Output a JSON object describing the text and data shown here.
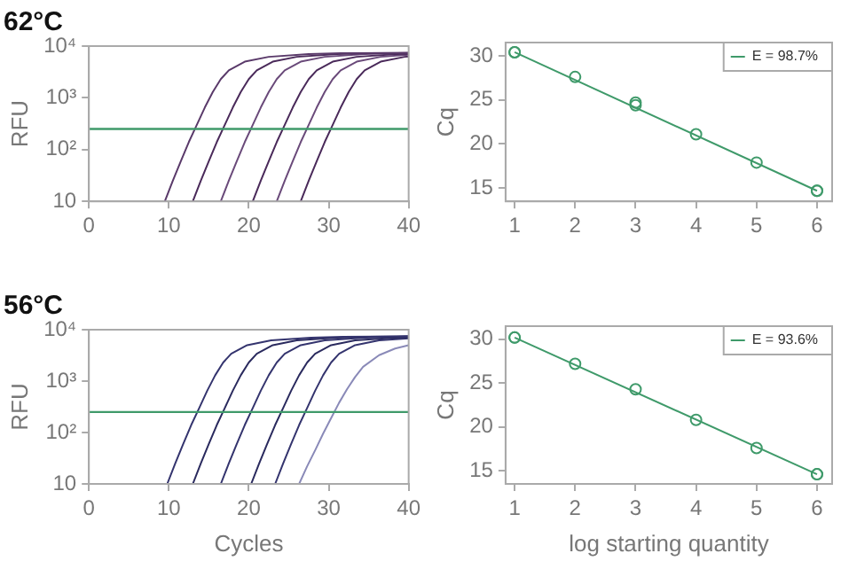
{
  "chart_data": [
    {
      "type": "line",
      "title": "62°C",
      "ylabel": "RFU",
      "log": "y",
      "grid": false,
      "marker": "none",
      "legend": false,
      "xlim": [
        0,
        40
      ],
      "xticks": [
        0,
        10,
        20,
        30,
        40
      ],
      "ylim": [
        10,
        10000
      ],
      "yticks": [
        10,
        {
          "value": 100,
          "label": "10²"
        },
        {
          "value": 1000,
          "label": "10³"
        },
        {
          "value": 10000,
          "label": "10⁴"
        }
      ],
      "ref_lines": [
        {
          "axis": "y",
          "value": 250,
          "color": "#3f9a6a"
        }
      ],
      "series": [
        {
          "color": "#5a3a6a",
          "x": [
            9.5,
            10.5,
            11.5,
            12.5,
            13.5,
            14.5,
            15.5,
            16.5,
            17.5,
            19.5,
            22.5,
            27.5,
            31.5,
            40
          ],
          "values": [
            10,
            25,
            60,
            140,
            300,
            650,
            1300,
            2300,
            3400,
            5000,
            6200,
            7000,
            7300,
            7400
          ]
        },
        {
          "color": "#4a2a5a",
          "x": [
            13,
            14,
            15,
            16,
            17,
            18,
            19,
            20,
            21,
            23,
            26,
            31,
            35,
            40
          ],
          "values": [
            10,
            25,
            60,
            140,
            300,
            650,
            1300,
            2300,
            3400,
            5000,
            6200,
            7000,
            7300,
            7400
          ]
        },
        {
          "color": "#6a4a7a",
          "x": [
            16.5,
            17.5,
            18.5,
            19.5,
            20.5,
            21.5,
            22.5,
            23.5,
            24.5,
            26.5,
            29.5,
            34.5,
            38.5,
            40
          ],
          "values": [
            10,
            25,
            60,
            140,
            300,
            650,
            1300,
            2300,
            3400,
            5000,
            6200,
            7000,
            7300,
            7400
          ]
        },
        {
          "color": "#4a2a5a",
          "x": [
            20.5,
            21.5,
            22.5,
            23.5,
            24.5,
            25.5,
            26.5,
            27.5,
            28.5,
            30.5,
            33.5,
            38.5,
            40
          ],
          "values": [
            10,
            25,
            60,
            140,
            300,
            650,
            1300,
            2300,
            3400,
            5000,
            6200,
            7000,
            7100
          ]
        },
        {
          "color": "#6a4a7a",
          "x": [
            23.5,
            24.5,
            25.5,
            26.5,
            27.5,
            28.5,
            29.5,
            30.5,
            31.5,
            33.5,
            36.5,
            40
          ],
          "values": [
            10,
            25,
            60,
            140,
            300,
            650,
            1300,
            2300,
            3400,
            5000,
            6200,
            6800
          ]
        },
        {
          "color": "#4a2a5a",
          "x": [
            26.5,
            27.5,
            28.5,
            29.5,
            30.5,
            31.5,
            32.5,
            33.5,
            34.5,
            36.5,
            39.5,
            40
          ],
          "values": [
            10,
            25,
            60,
            140,
            300,
            650,
            1300,
            2300,
            3400,
            5000,
            6200,
            6300
          ]
        }
      ]
    },
    {
      "type": "scatter",
      "ylabel": "Cq",
      "grid": false,
      "marker": "circle",
      "legend": "top right",
      "xlim": [
        0.85,
        6.25
      ],
      "xticks": [
        1,
        2,
        3,
        4,
        5,
        6
      ],
      "ylim": [
        13.5,
        31.5
      ],
      "yticks": [
        15,
        20,
        25,
        30
      ],
      "series": [
        {
          "color": "#3f9a6a",
          "x": [
            1,
            2,
            3,
            3,
            4,
            5,
            6
          ],
          "values": [
            30.4,
            27.6,
            24.7,
            24.4,
            21.1,
            17.9,
            14.7
          ]
        },
        {
          "type": "line",
          "name": "E = 98.7%",
          "color": "#3f9a6a",
          "x": [
            1,
            6
          ],
          "values": [
            30.4,
            14.7
          ]
        }
      ]
    },
    {
      "type": "line",
      "title": "56°C",
      "xlabel": "Cycles",
      "ylabel": "RFU",
      "log": "y",
      "grid": false,
      "marker": "none",
      "legend": false,
      "xlim": [
        0,
        40
      ],
      "xticks": [
        0,
        10,
        20,
        30,
        40
      ],
      "ylim": [
        10,
        10000
      ],
      "yticks": [
        10,
        {
          "value": 100,
          "label": "10²"
        },
        {
          "value": 1000,
          "label": "10³"
        },
        {
          "value": 10000,
          "label": "10⁴"
        }
      ],
      "ref_lines": [
        {
          "axis": "y",
          "value": 250,
          "color": "#3f9a6a"
        }
      ],
      "series": [
        {
          "color": "#34346e",
          "x": [
            9.8,
            10.8,
            11.8,
            12.8,
            13.8,
            14.8,
            15.8,
            16.8,
            17.8,
            19.8,
            22.8,
            27.8,
            31.8,
            40
          ],
          "values": [
            10,
            25,
            60,
            140,
            300,
            650,
            1300,
            2300,
            3400,
            5000,
            6200,
            7000,
            7300,
            7400
          ]
        },
        {
          "color": "#2a2a5e",
          "x": [
            13,
            14,
            15,
            16,
            17,
            18,
            19,
            20,
            21,
            23,
            26,
            31,
            35,
            40
          ],
          "values": [
            10,
            25,
            60,
            140,
            300,
            650,
            1300,
            2300,
            3400,
            5000,
            6200,
            7000,
            7300,
            7400
          ]
        },
        {
          "color": "#34346e",
          "x": [
            16.5,
            17.5,
            18.5,
            19.5,
            20.5,
            21.5,
            22.5,
            23.5,
            24.5,
            26.5,
            29.5,
            34.5,
            38.5,
            40
          ],
          "values": [
            10,
            25,
            60,
            140,
            300,
            650,
            1300,
            2300,
            3400,
            5000,
            6200,
            7000,
            7300,
            7400
          ]
        },
        {
          "color": "#2a2a5e",
          "x": [
            20.3,
            21.3,
            22.3,
            23.3,
            24.3,
            25.3,
            26.3,
            27.3,
            28.3,
            30.3,
            33.3,
            38.3,
            40
          ],
          "values": [
            10,
            25,
            60,
            140,
            300,
            650,
            1300,
            2300,
            3400,
            5000,
            6200,
            7000,
            7100
          ]
        },
        {
          "color": "#34346e",
          "x": [
            23.3,
            24.3,
            25.3,
            26.3,
            27.3,
            28.3,
            29.3,
            30.3,
            31.3,
            33.3,
            36.3,
            40
          ],
          "values": [
            10,
            25,
            60,
            140,
            300,
            650,
            1300,
            2300,
            3400,
            5000,
            6200,
            6800
          ]
        },
        {
          "color": "#8a8ab8",
          "x": [
            26.3,
            27.3,
            28.3,
            29.3,
            30.3,
            31.3,
            32.3,
            33.3,
            34.3,
            36.3,
            38.3,
            40
          ],
          "values": [
            10,
            22,
            45,
            95,
            190,
            380,
            700,
            1200,
            1900,
            3200,
            4300,
            5000
          ]
        }
      ]
    },
    {
      "type": "scatter",
      "xlabel": "log starting quantity",
      "ylabel": "Cq",
      "grid": false,
      "marker": "circle",
      "legend": "top right",
      "xlim": [
        0.85,
        6.25
      ],
      "xticks": [
        1,
        2,
        3,
        4,
        5,
        6
      ],
      "ylim": [
        13.5,
        31.5
      ],
      "yticks": [
        15,
        20,
        25,
        30
      ],
      "series": [
        {
          "color": "#3f9a6a",
          "x": [
            1,
            2,
            3,
            4,
            5,
            6
          ],
          "values": [
            30.2,
            27.2,
            24.3,
            20.8,
            17.6,
            14.6
          ]
        },
        {
          "type": "line",
          "name": "E = 93.6%",
          "color": "#3f9a6a",
          "x": [
            1,
            6
          ],
          "values": [
            30.2,
            14.6
          ]
        }
      ]
    }
  ]
}
